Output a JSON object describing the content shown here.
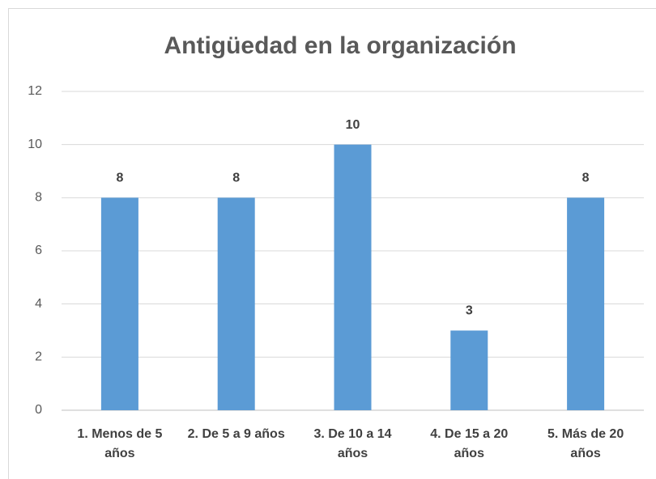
{
  "chart_data": {
    "type": "bar",
    "title": "Antigüedad en la organización",
    "categories": [
      "1. Menos de 5 años",
      "2. De 5 a 9 años",
      "3. De 10 a 14 años",
      "4. De 15 a 20 años",
      "5. Más de 20 años"
    ],
    "values": [
      8,
      8,
      10,
      3,
      8
    ],
    "color": "#5b9bd5",
    "ylim": [
      0,
      12
    ],
    "yticks": [
      0,
      2,
      4,
      6,
      8,
      10,
      12
    ],
    "grid": true
  }
}
